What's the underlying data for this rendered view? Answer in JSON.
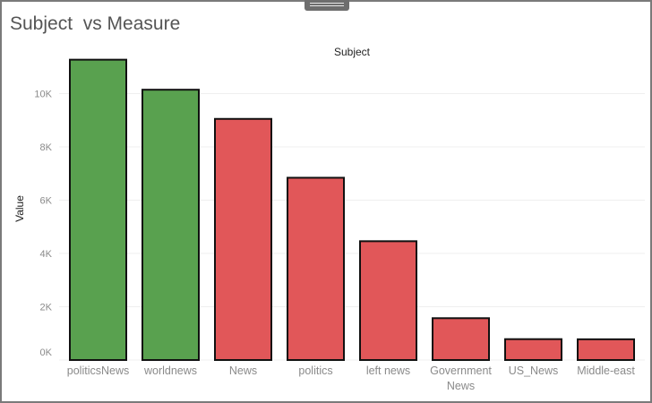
{
  "page": {
    "title": "Subject  vs Measure"
  },
  "chart_data": {
    "type": "bar",
    "column_header": "Subject",
    "ylabel": "Value",
    "ylim": [
      0,
      12000
    ],
    "yticks": [
      0,
      2000,
      4000,
      6000,
      8000,
      10000
    ],
    "ytick_labels": [
      "0K",
      "2K",
      "4K",
      "6K",
      "8K",
      "10K"
    ],
    "grid": true,
    "categories": [
      [
        "politicsNews"
      ],
      [
        "worldnews"
      ],
      [
        "News"
      ],
      [
        "politics"
      ],
      [
        "left news"
      ],
      [
        "Government",
        "News"
      ],
      [
        "US_News"
      ],
      [
        "Middle-east"
      ]
    ],
    "values": [
      11272,
      10145,
      9050,
      6841,
      4459,
      1570,
      783,
      778
    ],
    "bar_colors": [
      "#59a14f",
      "#59a14f",
      "#e15759",
      "#e15759",
      "#e15759",
      "#e15759",
      "#e15759",
      "#e15759"
    ],
    "bar_outline": "#111111"
  }
}
